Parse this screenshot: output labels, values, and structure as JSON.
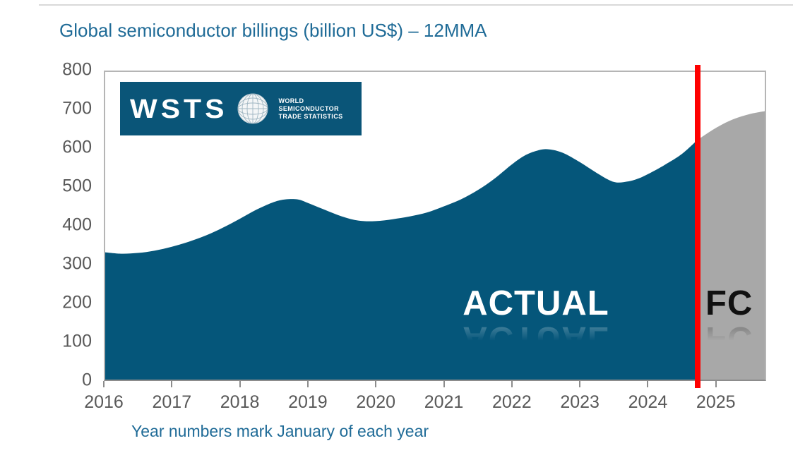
{
  "title": {
    "text": "Global semiconductor billings (billion US$) – 12MMA",
    "color": "#1f6b97"
  },
  "caption": {
    "text": "Year numbers mark January of each year"
  },
  "labels": {
    "actual": "ACTUAL",
    "forecast": "FC"
  },
  "logo": {
    "wordmark": "WSTS",
    "org_line1": "WORLD",
    "org_line2": "SEMICONDUCTOR",
    "org_line3": "TRADE STATISTICS",
    "bg_color": "#0a5578",
    "globe_icon": "globe-icon"
  },
  "colors": {
    "actual_area": "#05567a",
    "forecast_area": "#a8a8a8",
    "divider_line": "#fe0000",
    "axis_text": "#595959",
    "title_text": "#1f6b97"
  },
  "chart_data": {
    "type": "area",
    "title": "Global semiconductor billings (billion US$) – 12MMA",
    "unit": "billion US$",
    "x_axis": {
      "range": [
        2016,
        2025.74
      ],
      "ticks": [
        2016,
        2017,
        2018,
        2019,
        2020,
        2021,
        2022,
        2023,
        2024,
        2025
      ],
      "note": "Year numbers mark January of each year"
    },
    "y_axis": {
      "range": [
        0,
        800
      ],
      "ticks": [
        0,
        100,
        200,
        300,
        400,
        500,
        600,
        700,
        800
      ]
    },
    "grid": false,
    "legend": "none",
    "series": [
      {
        "name": "ACTUAL",
        "color": "#05567a",
        "points": [
          [
            2016.0,
            332
          ],
          [
            2016.25,
            328
          ],
          [
            2016.5,
            330
          ],
          [
            2016.75,
            336
          ],
          [
            2017.0,
            346
          ],
          [
            2017.25,
            359
          ],
          [
            2017.5,
            375
          ],
          [
            2017.75,
            395
          ],
          [
            2018.0,
            418
          ],
          [
            2018.25,
            442
          ],
          [
            2018.5,
            461
          ],
          [
            2018.67,
            468
          ],
          [
            2018.85,
            468
          ],
          [
            2019.0,
            459
          ],
          [
            2019.25,
            441
          ],
          [
            2019.5,
            424
          ],
          [
            2019.75,
            413
          ],
          [
            2020.0,
            412
          ],
          [
            2020.25,
            417
          ],
          [
            2020.5,
            424
          ],
          [
            2020.75,
            434
          ],
          [
            2021.0,
            450
          ],
          [
            2021.25,
            468
          ],
          [
            2021.5,
            492
          ],
          [
            2021.75,
            522
          ],
          [
            2022.0,
            558
          ],
          [
            2022.2,
            582
          ],
          [
            2022.4,
            595
          ],
          [
            2022.55,
            597
          ],
          [
            2022.75,
            588
          ],
          [
            2023.0,
            564
          ],
          [
            2023.25,
            536
          ],
          [
            2023.5,
            513
          ],
          [
            2023.7,
            514
          ],
          [
            2023.85,
            521
          ],
          [
            2024.0,
            533
          ],
          [
            2024.25,
            557
          ],
          [
            2024.5,
            585
          ],
          [
            2024.73,
            621
          ]
        ]
      },
      {
        "name": "FC",
        "color": "#a8a8a8",
        "points": [
          [
            2024.73,
            621
          ],
          [
            2025.0,
            652
          ],
          [
            2025.25,
            674
          ],
          [
            2025.5,
            688
          ],
          [
            2025.74,
            696
          ]
        ]
      }
    ],
    "forecast_divider": {
      "x": 2024.73,
      "color": "#fe0000"
    }
  }
}
